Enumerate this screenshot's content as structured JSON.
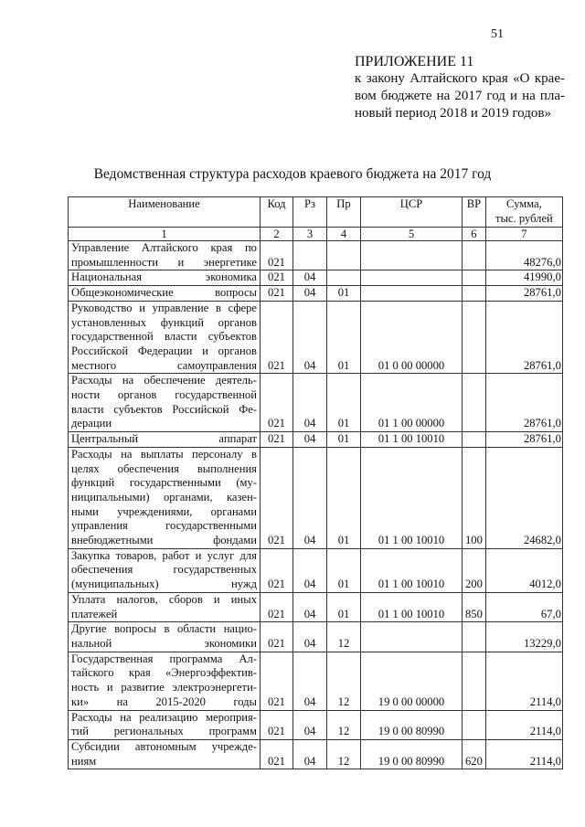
{
  "page_number": "51",
  "appendix": {
    "title": "ПРИЛОЖЕНИЕ 11",
    "lines": [
      "к закону Алтайского края «О крае-",
      "вом бюджете на 2017 год и на пла-",
      "новый период 2018 и 2019 годов»"
    ]
  },
  "heading": "Ведомственная структура расходов краевого бюджета на 2017 год",
  "table": {
    "headers": [
      "Наименование",
      "Код",
      "Рз",
      "Пр",
      "ЦСР",
      "ВР",
      "Сумма, тыс. рублей"
    ],
    "header_sum_lines": [
      "Сумма,",
      "тыс. рублей"
    ],
    "column_numbers": [
      "1",
      "2",
      "3",
      "4",
      "5",
      "6",
      "7"
    ],
    "rows": [
      {
        "name": [
          "Управление Алтайского края по",
          "промышленности и энергетике"
        ],
        "kod": "021",
        "rz": "",
        "pr": "",
        "csr": "",
        "vr": "",
        "sum": "48276,0"
      },
      {
        "name": [
          "Национальная экономика"
        ],
        "kod": "021",
        "rz": "04",
        "pr": "",
        "csr": "",
        "vr": "",
        "sum": "41990,0"
      },
      {
        "name": [
          "Общеэкономические вопросы"
        ],
        "kod": "021",
        "rz": "04",
        "pr": "01",
        "csr": "",
        "vr": "",
        "sum": "28761,0"
      },
      {
        "name": [
          "Руководство и управление в сфере",
          "установленных функций органов",
          "государственной власти субъектов",
          "Российской Федерации и органов",
          "местного самоуправления"
        ],
        "kod": "021",
        "rz": "04",
        "pr": "01",
        "csr": "01 0 00 00000",
        "vr": "",
        "sum": "28761,0"
      },
      {
        "name": [
          "Расходы на обеспечение деятель-",
          "ности органов государственной",
          "власти субъектов Российской Фе-",
          "дерации"
        ],
        "kod": "021",
        "rz": "04",
        "pr": "01",
        "csr": "01 1 00 00000",
        "vr": "",
        "sum": "28761,0"
      },
      {
        "name": [
          "Центральный аппарат"
        ],
        "kod": "021",
        "rz": "04",
        "pr": "01",
        "csr": "01 1 00 10010",
        "vr": "",
        "sum": "28761,0"
      },
      {
        "name": [
          "Расходы на выплаты персоналу в",
          "целях обеспечения выполнения",
          "функций государственными (му-",
          "ниципальными) органами, казен-",
          "ными учреждениями, органами",
          "управления государственными",
          "внебюджетными фондами"
        ],
        "kod": "021",
        "rz": "04",
        "pr": "01",
        "csr": "01 1 00 10010",
        "vr": "100",
        "sum": "24682,0"
      },
      {
        "name": [
          "Закупка товаров, работ и услуг для",
          "обеспечения государственных",
          "(муниципальных) нужд"
        ],
        "kod": "021",
        "rz": "04",
        "pr": "01",
        "csr": "01 1 00 10010",
        "vr": "200",
        "sum": "4012,0"
      },
      {
        "name": [
          "Уплата налогов, сборов и иных",
          "платежей"
        ],
        "kod": "021",
        "rz": "04",
        "pr": "01",
        "csr": "01 1 00 10010",
        "vr": "850",
        "sum": "67,0"
      },
      {
        "name": [
          "Другие вопросы в области нацио-",
          "нальной экономики"
        ],
        "kod": "021",
        "rz": "04",
        "pr": "12",
        "csr": "",
        "vr": "",
        "sum": "13229,0"
      },
      {
        "name": [
          "Государственная программа Ал-",
          "тайского края «Энергоэффектив-",
          "ность и развитие электроэнергети-",
          "ки» на 2015-2020 годы"
        ],
        "kod": "021",
        "rz": "04",
        "pr": "12",
        "csr": "19 0 00 00000",
        "vr": "",
        "sum": "2114,0"
      },
      {
        "name": [
          "Расходы на реализацию мероприя-",
          "тий региональных программ"
        ],
        "kod": "021",
        "rz": "04",
        "pr": "12",
        "csr": "19 0 00 80990",
        "vr": "",
        "sum": "2114,0"
      },
      {
        "name": [
          "Субсидии автономным учрежде-",
          "ниям"
        ],
        "kod": "021",
        "rz": "04",
        "pr": "12",
        "csr": "19 0 00 80990",
        "vr": "620",
        "sum": "2114,0"
      }
    ]
  }
}
